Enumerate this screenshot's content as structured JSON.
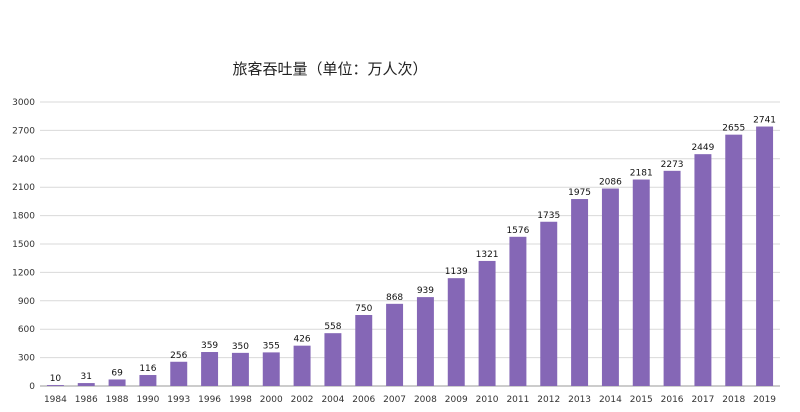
{
  "chart_data": {
    "type": "bar",
    "title": "旅客吞吐量（单位：万人次）",
    "xlabel": "",
    "ylabel": "",
    "ylim": [
      0,
      3000
    ],
    "yticks": [
      0,
      300,
      600,
      900,
      1200,
      1500,
      1800,
      2100,
      2400,
      2700,
      3000
    ],
    "grid": true,
    "legend": "none",
    "bar_color": "#8567B6",
    "categories": [
      "1984",
      "1986",
      "1988",
      "1990",
      "1993",
      "1996",
      "1998",
      "2000",
      "2002",
      "2004",
      "2006",
      "2007",
      "2008",
      "2009",
      "2010",
      "2011",
      "2012",
      "2013",
      "2014",
      "2015",
      "2016",
      "2017",
      "2018",
      "2019"
    ],
    "values": [
      10,
      31,
      69,
      116,
      256,
      359,
      350,
      355,
      426,
      558,
      750,
      868,
      939,
      1139,
      1321,
      1576,
      1735,
      1975,
      2086,
      2181,
      2273,
      2449,
      2655,
      2741
    ]
  }
}
